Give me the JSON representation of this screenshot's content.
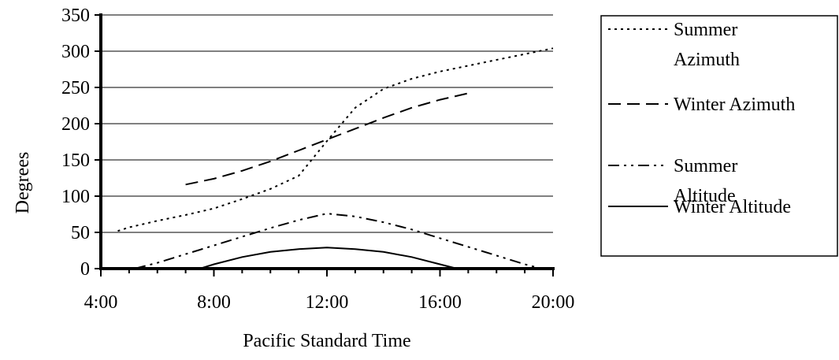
{
  "chart_data": {
    "type": "line",
    "title": "",
    "xlabel": "Pacific Standard Time",
    "ylabel": "Degrees",
    "xlim": [
      4,
      20
    ],
    "ylim": [
      0,
      350
    ],
    "x_ticks": [
      "4:00",
      "8:00",
      "12:00",
      "16:00",
      "20:00"
    ],
    "y_ticks": [
      "0",
      "50",
      "100",
      "150",
      "200",
      "250",
      "300",
      "350"
    ],
    "grid": "horizontal",
    "legend": "right",
    "series": [
      {
        "name": "Summer Azimuth",
        "legend_lines": [
          "Summer",
          "Azimuth"
        ],
        "style": "dotted",
        "x": [
          4.6,
          5,
          6,
          7,
          8,
          9,
          10,
          11,
          12,
          13,
          14,
          15,
          16,
          17,
          18,
          19,
          20
        ],
        "y": [
          52,
          57,
          66,
          74,
          83,
          96,
          110,
          128,
          176,
          222,
          248,
          262,
          272,
          280,
          288,
          296,
          304
        ]
      },
      {
        "name": "Winter Azimuth",
        "legend_lines": [
          "Winter Azimuth"
        ],
        "style": "dashed",
        "x": [
          7,
          8,
          9,
          10,
          11,
          12,
          13,
          14,
          15,
          16,
          17
        ],
        "y": [
          116,
          124,
          135,
          148,
          163,
          178,
          193,
          208,
          222,
          233,
          242
        ]
      },
      {
        "name": "Summer Altitude",
        "legend_lines": [
          "Summer",
          "Altitude"
        ],
        "style": "dash-dot-dot",
        "x": [
          5.2,
          6,
          7,
          8,
          9,
          10,
          11,
          12,
          13,
          14,
          15,
          16,
          17,
          18,
          19,
          19.6
        ],
        "y": [
          0,
          8,
          20,
          32,
          44,
          56,
          67,
          76,
          72,
          64,
          54,
          42,
          30,
          18,
          6,
          0
        ]
      },
      {
        "name": "Winter Altitude",
        "legend_lines": [
          "Winter Altitude"
        ],
        "style": "solid",
        "x": [
          7.5,
          8,
          9,
          10,
          11,
          12,
          13,
          14,
          15,
          16,
          16.6
        ],
        "y": [
          0,
          6,
          16,
          23,
          27,
          29,
          27,
          23,
          16,
          6,
          0
        ]
      }
    ]
  }
}
